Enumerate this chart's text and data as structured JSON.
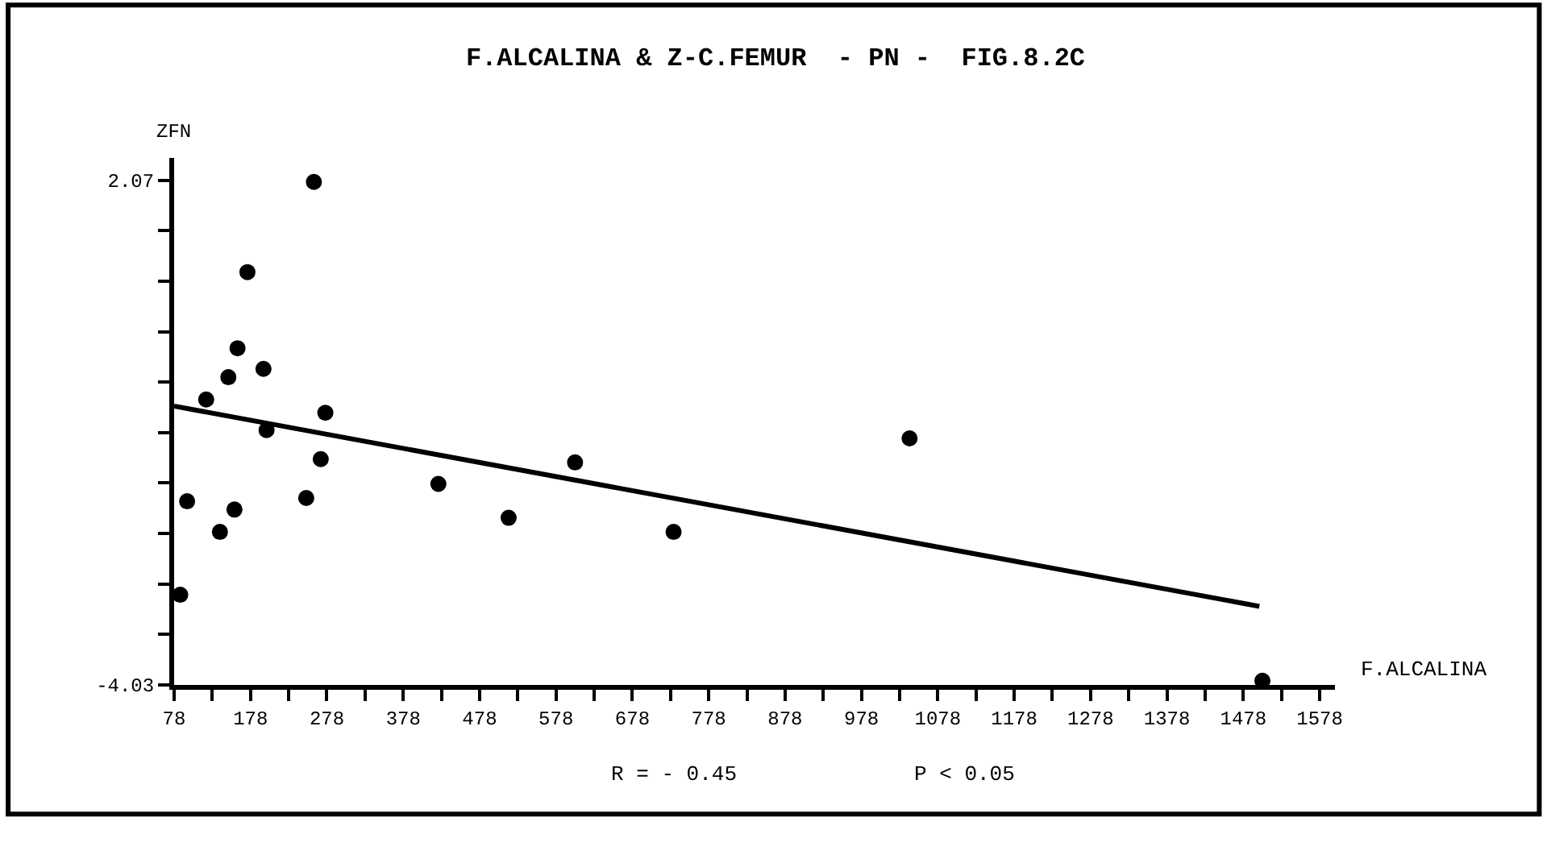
{
  "chart_data": {
    "type": "scatter",
    "title": "F.ALCALINA & Z-C.FEMUR  - PN -  FIG.8.2C",
    "xlabel": "F.ALCALINA",
    "ylabel": "ZFN",
    "annotations": [
      "R = - 0.45",
      "P < 0.05"
    ],
    "series": [
      {
        "color": "#000000",
        "marker": "circle",
        "x": [
          261,
          174,
          161,
          149,
          195,
          120,
          199,
          276,
          270,
          95,
          251,
          157,
          138,
          424,
          516,
          603,
          732,
          86,
          1041,
          1503
        ],
        "values": [
          2.05,
          0.96,
          0.04,
          -0.31,
          -0.21,
          -0.58,
          -0.95,
          -0.74,
          -1.3,
          -1.81,
          -1.77,
          -1.91,
          -2.18,
          -1.6,
          -2.01,
          -1.34,
          -2.18,
          -2.94,
          -1.05,
          -3.98
        ]
      },
      {
        "type": "line",
        "color": "#000000",
        "line_style": "solid",
        "x": [
          78,
          1499
        ],
        "values": [
          -0.66,
          -3.08
        ]
      }
    ],
    "xlim": [
      78,
      1598
    ],
    "ylim": [
      -4.03,
      2.34
    ],
    "xticks": [
      78,
      {
        "value": 128,
        "label": null
      },
      178,
      {
        "value": 228,
        "label": null
      },
      278,
      {
        "value": 328,
        "label": null
      },
      378,
      {
        "value": 428,
        "label": null
      },
      478,
      {
        "value": 528,
        "label": null
      },
      578,
      {
        "value": 628,
        "label": null
      },
      678,
      {
        "value": 728,
        "label": null
      },
      778,
      {
        "value": 828,
        "label": null
      },
      878,
      {
        "value": 928,
        "label": null
      },
      978,
      {
        "value": 1028,
        "label": null
      },
      1078,
      {
        "value": 1128,
        "label": null
      },
      1178,
      {
        "value": 1228,
        "label": null
      },
      1278,
      {
        "value": 1328,
        "label": null
      },
      1378,
      {
        "value": 1428,
        "label": null
      },
      1478,
      {
        "value": 1528,
        "label": null
      },
      1578
    ],
    "yticks": [
      -4.03,
      {
        "value": -3.42,
        "label": null
      },
      {
        "value": -2.81,
        "label": null
      },
      {
        "value": -2.2,
        "label": null
      },
      {
        "value": -1.59,
        "label": null
      },
      {
        "value": -0.98,
        "label": null
      },
      {
        "value": -0.37,
        "label": null
      },
      {
        "value": 0.24,
        "label": null
      },
      {
        "value": 0.85,
        "label": null
      },
      {
        "value": 1.46,
        "label": null
      },
      2.07
    ],
    "legend": false
  }
}
